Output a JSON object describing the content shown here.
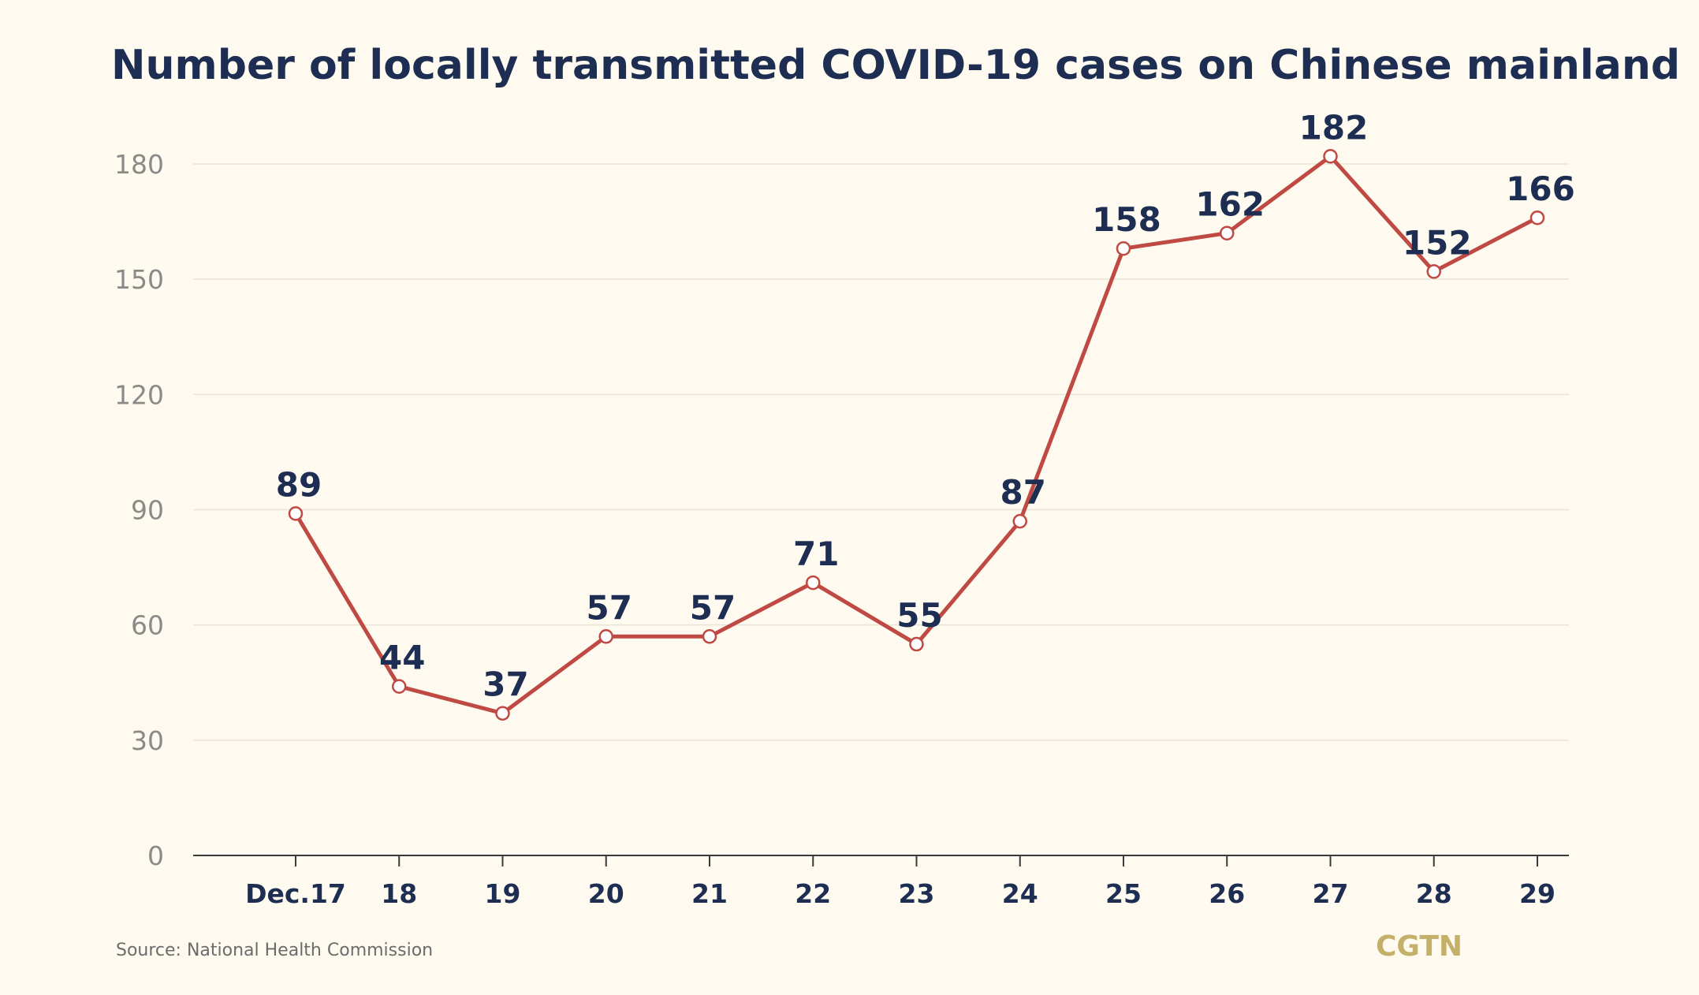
{
  "chart_data": {
    "type": "line",
    "title": "Number of locally transmitted COVID-19 cases on Chinese mainland",
    "categories": [
      "Dec.17",
      "18",
      "19",
      "20",
      "21",
      "22",
      "23",
      "24",
      "25",
      "26",
      "27",
      "28",
      "29"
    ],
    "series": [
      {
        "values": [
          89,
          44,
          37,
          57,
          57,
          71,
          55,
          87,
          158,
          162,
          182,
          152,
          166
        ],
        "color": "#bf4a43"
      }
    ],
    "yticks": [
      0,
      30,
      60,
      90,
      120,
      150,
      180
    ],
    "ylim": [
      0,
      180
    ],
    "grid": true,
    "colors": {
      "title": "#1e2e52",
      "line": "#bf4a43",
      "grid": "#e8e4d8",
      "background": "#fefaf0"
    }
  },
  "source": "Source: National Health Commission",
  "brand": "CGTN"
}
